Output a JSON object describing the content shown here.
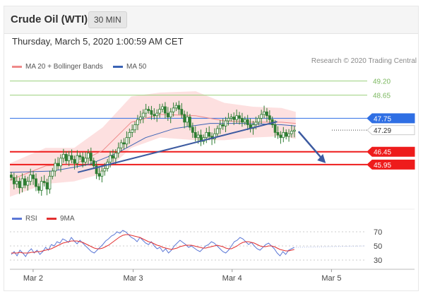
{
  "header": {
    "title": "Crude Oil (WTI)",
    "timeframe": "30 MIN",
    "timestamp": "Thursday, March 5, 2020 1:00:59 AM CET"
  },
  "legend": {
    "ma20": "MA 20 + Bollinger Bands",
    "ma50": "MA 50",
    "credit": "Research © 2020 Trading Central",
    "rsi": "RSI",
    "ma9": "9MA"
  },
  "colors": {
    "candle": "#2e7d32",
    "ma20": "#ef8a8a",
    "band": "#fcd6d6",
    "ma50": "#3b63b5",
    "trend": "#3c5aa0",
    "resistance": "#9bd07d",
    "support": "#ee1c1c",
    "current": "#2f6fe4",
    "rsi": "#5b77d6",
    "rsi_ma": "#e23030"
  },
  "chart_data": [
    {
      "type": "candlestick",
      "x_ticks": [
        "Mar 2",
        "Mar 3",
        "Mar 4",
        "Mar 5"
      ],
      "ylim": [
        44.3,
        49.6
      ],
      "levels": [
        {
          "label": "49.20",
          "value": 49.2,
          "kind": "resistance"
        },
        {
          "label": "48.65",
          "value": 48.65,
          "kind": "resistance"
        },
        {
          "label": "47.75",
          "value": 47.75,
          "kind": "pivot"
        },
        {
          "label": "47.29",
          "value": 47.29,
          "kind": "last"
        },
        {
          "label": "46.45",
          "value": 46.45,
          "kind": "support"
        },
        {
          "label": "45.95",
          "value": 45.95,
          "kind": "support"
        }
      ],
      "close_series": [
        45.45,
        45.2,
        45.3,
        45.05,
        45.4,
        45.15,
        45.3,
        45.55,
        45.4,
        45.1,
        44.95,
        45.3,
        45.25,
        45.0,
        45.5,
        45.7,
        46.0,
        45.9,
        46.2,
        46.35,
        46.1,
        46.3,
        46.15,
        46.0,
        46.3,
        46.25,
        46.05,
        46.2,
        46.4,
        46.1,
        45.9,
        45.6,
        45.5,
        45.7,
        45.8,
        46.05,
        46.3,
        46.2,
        46.4,
        46.6,
        46.8,
        46.75,
        47.0,
        47.2,
        47.3,
        47.5,
        47.7,
        47.8,
        47.95,
        48.1,
        48.05,
        47.9,
        47.85,
        47.95,
        48.1,
        48.2,
        47.95,
        47.8,
        48.0,
        48.15,
        48.25,
        48.1,
        47.9,
        47.6,
        47.8,
        47.4,
        47.2,
        47.0,
        47.1,
        46.85,
        47.0,
        47.2,
        47.05,
        46.95,
        47.15,
        47.35,
        47.5,
        47.45,
        47.65,
        47.75,
        47.8,
        47.7,
        47.85,
        47.75,
        47.6,
        47.7,
        47.5,
        47.35,
        47.5,
        47.6,
        47.75,
        47.9,
        48.0,
        47.85,
        47.7,
        47.5,
        47.2,
        47.1,
        47.0,
        47.2,
        47.05,
        47.15,
        47.25,
        47.29
      ],
      "trendline": [
        [
          0.19,
          45.65
        ],
        [
          0.748,
          47.62
        ]
      ],
      "ma50": [
        [
          0.0,
          45.65
        ],
        [
          0.12,
          45.7
        ],
        [
          0.22,
          45.95
        ],
        [
          0.3,
          46.4
        ],
        [
          0.38,
          47.0
        ],
        [
          0.46,
          47.35
        ],
        [
          0.56,
          47.55
        ],
        [
          0.66,
          47.55
        ],
        [
          0.76,
          47.5
        ],
        [
          0.8,
          47.45
        ]
      ],
      "ma20": [
        [
          0.0,
          45.35
        ],
        [
          0.1,
          45.9
        ],
        [
          0.18,
          45.95
        ],
        [
          0.26,
          46.5
        ],
        [
          0.34,
          47.6
        ],
        [
          0.42,
          47.9
        ],
        [
          0.52,
          47.85
        ],
        [
          0.6,
          47.65
        ],
        [
          0.68,
          47.6
        ],
        [
          0.76,
          47.6
        ],
        [
          0.8,
          47.55
        ]
      ],
      "band_upper": [
        [
          0.0,
          46.0
        ],
        [
          0.1,
          46.6
        ],
        [
          0.18,
          46.6
        ],
        [
          0.26,
          47.4
        ],
        [
          0.34,
          48.6
        ],
        [
          0.42,
          48.75
        ],
        [
          0.52,
          48.8
        ],
        [
          0.6,
          48.35
        ],
        [
          0.68,
          48.2
        ],
        [
          0.76,
          48.15
        ],
        [
          0.8,
          48.0
        ]
      ],
      "band_lower": [
        [
          0.0,
          44.7
        ],
        [
          0.1,
          45.2
        ],
        [
          0.18,
          45.3
        ],
        [
          0.26,
          45.6
        ],
        [
          0.34,
          46.6
        ],
        [
          0.42,
          47.0
        ],
        [
          0.52,
          46.9
        ],
        [
          0.6,
          46.9
        ],
        [
          0.68,
          47.0
        ],
        [
          0.76,
          47.05
        ],
        [
          0.8,
          46.95
        ]
      ],
      "projection": [
        [
          0.8,
          47.29
        ],
        [
          0.86,
          46.45
        ],
        [
          0.88,
          45.95
        ]
      ]
    },
    {
      "type": "line",
      "series": [
        {
          "name": "RSI",
          "values": [
            38,
            42,
            36,
            44,
            40,
            35,
            42,
            46,
            40,
            44,
            38,
            42,
            48,
            44,
            52,
            50,
            56,
            54,
            60,
            58,
            55,
            62,
            57,
            53,
            58,
            54,
            50,
            46,
            42,
            40,
            44,
            48,
            52,
            57,
            60,
            64,
            66,
            70,
            68,
            72,
            70,
            66,
            62,
            60,
            56,
            62,
            58,
            54,
            52,
            56,
            50,
            46,
            48,
            42,
            46,
            40,
            44,
            50,
            54,
            58,
            55,
            52,
            48,
            50,
            47,
            44,
            42,
            46,
            50,
            52,
            56,
            54,
            50,
            46,
            42,
            40,
            44,
            50,
            56,
            58,
            62,
            60,
            56,
            52,
            55,
            50,
            46,
            44,
            48,
            52,
            54,
            50,
            46,
            40,
            36,
            42,
            38,
            44,
            46,
            48
          ]
        },
        {
          "name": "9MA",
          "values": [
            40,
            40,
            40,
            41,
            40,
            40,
            40,
            41,
            41,
            42,
            42,
            43,
            44,
            45,
            46,
            48,
            50,
            52,
            54,
            55,
            56,
            57,
            57,
            57,
            56,
            55,
            53,
            51,
            49,
            47,
            46,
            46,
            47,
            49,
            51,
            54,
            57,
            60,
            63,
            65,
            66,
            66,
            65,
            64,
            63,
            62,
            60,
            58,
            56,
            55,
            53,
            51,
            50,
            48,
            47,
            46,
            45,
            46,
            47,
            49,
            50,
            51,
            51,
            51,
            50,
            49,
            48,
            47,
            47,
            48,
            49,
            50,
            51,
            50,
            49,
            47,
            46,
            46,
            48,
            50,
            53,
            55,
            56,
            56,
            55,
            54,
            52,
            50,
            49,
            49,
            50,
            50,
            49,
            47,
            45,
            44,
            43,
            43,
            44,
            45
          ]
        }
      ],
      "x_ticks": [
        "Mar 2",
        "Mar 3",
        "Mar 4",
        "Mar 5"
      ],
      "y_ticks": [
        "70",
        "50",
        "30"
      ],
      "ylim": [
        20,
        80
      ]
    }
  ]
}
